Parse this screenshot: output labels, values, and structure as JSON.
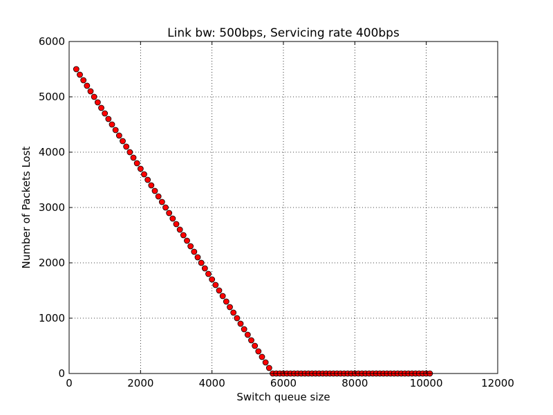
{
  "chart_data": {
    "type": "scatter",
    "title": "Link bw: 500bps, Servicing rate 400bps",
    "xlabel": "Switch queue size",
    "ylabel": "Number of Packets Lost",
    "xlim": [
      0,
      12000
    ],
    "ylim": [
      0,
      6000
    ],
    "xticks": [
      "0",
      "2000",
      "4000",
      "6000",
      "8000",
      "10000",
      "12000"
    ],
    "yticks": [
      "0",
      "1000",
      "2000",
      "3000",
      "4000",
      "5000",
      "6000"
    ],
    "grid": true,
    "marker": "circle",
    "marker_color": "#ff0000",
    "series": [
      {
        "x": [
          200,
          300,
          400,
          500,
          600,
          700,
          800,
          900,
          1000,
          1100,
          1200,
          1300,
          1400,
          1500,
          1600,
          1700,
          1800,
          1900,
          2000,
          2100,
          2200,
          2300,
          2400,
          2500,
          2600,
          2700,
          2800,
          2900,
          3000,
          3100,
          3200,
          3300,
          3400,
          3500,
          3600,
          3700,
          3800,
          3900,
          4000,
          4100,
          4200,
          4300,
          4400,
          4500,
          4600,
          4700,
          4800,
          4900,
          5000,
          5100,
          5200,
          5300,
          5400,
          5500,
          5600,
          5700,
          5800,
          5900,
          6000,
          6100,
          6200,
          6300,
          6400,
          6500,
          6600,
          6700,
          6800,
          6900,
          7000,
          7100,
          7200,
          7300,
          7400,
          7500,
          7600,
          7700,
          7800,
          7900,
          8000,
          8100,
          8200,
          8300,
          8400,
          8500,
          8600,
          8700,
          8800,
          8900,
          9000,
          9100,
          9200,
          9300,
          9400,
          9500,
          9600,
          9700,
          9800,
          9900,
          10000,
          10100
        ],
        "y": [
          5500,
          5400,
          5300,
          5200,
          5100,
          5000,
          4900,
          4800,
          4700,
          4600,
          4500,
          4400,
          4300,
          4200,
          4100,
          4000,
          3900,
          3800,
          3700,
          3600,
          3500,
          3400,
          3300,
          3200,
          3100,
          3000,
          2900,
          2800,
          2700,
          2600,
          2500,
          2400,
          2300,
          2200,
          2100,
          2000,
          1900,
          1800,
          1700,
          1600,
          1500,
          1400,
          1300,
          1200,
          1100,
          1000,
          900,
          800,
          700,
          600,
          500,
          400,
          300,
          200,
          100,
          0,
          0,
          0,
          0,
          0,
          0,
          0,
          0,
          0,
          0,
          0,
          0,
          0,
          0,
          0,
          0,
          0,
          0,
          0,
          0,
          0,
          0,
          0,
          0,
          0,
          0,
          0,
          0,
          0,
          0,
          0,
          0,
          0,
          0,
          0,
          0,
          0,
          0,
          0,
          0,
          0,
          0,
          0,
          0,
          0
        ]
      }
    ]
  }
}
